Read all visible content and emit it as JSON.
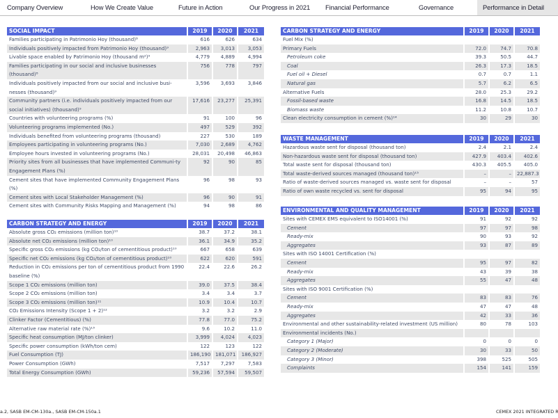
{
  "nav": {
    "tabs": [
      {
        "label": "Company Overview"
      },
      {
        "label": "How We Create Value"
      },
      {
        "label": "Future in Action"
      },
      {
        "label": "Our Progress in 2021"
      },
      {
        "label": "Financial Performance"
      },
      {
        "label": "Governance"
      },
      {
        "label": "Performance in Detail",
        "active": true
      }
    ]
  },
  "tables": {
    "social": {
      "title": "SOCIAL IMPACT",
      "years": [
        "2019",
        "2020",
        "2021"
      ],
      "rows": [
        {
          "label": "Families participating in Patrimonio Hoy (thousand)⁸",
          "values": [
            "616",
            "626",
            "634"
          ]
        },
        {
          "label": "Individuals positively impacted from Patrimonio Hoy (thousand)⁹",
          "values": [
            "2,963",
            "3,013",
            "3,053"
          ]
        },
        {
          "label": "Livable space enabled by Patrimonio Hoy (thousand m²)⁹",
          "values": [
            "4,779",
            "4,889",
            "4,994"
          ]
        },
        {
          "label": "Families participating in our social and inclusive businesses (thousand)⁸",
          "values": [
            "756",
            "778",
            "797"
          ]
        },
        {
          "label": "Individuals positively impacted from our social and inclusive busi-nesses (thousand)⁹",
          "values": [
            "3,596",
            "3,693",
            "3,846"
          ]
        },
        {
          "label": "Community partners (i.e. individuals positively impacted from our social initiatives) (thousand)⁹",
          "values": [
            "17,616",
            "23,277",
            "25,391"
          ]
        },
        {
          "label": "Countries with volunteering programs (%)",
          "values": [
            "91",
            "100",
            "96"
          ]
        },
        {
          "label": "Volunteering programs implemented (No.)",
          "values": [
            "497",
            "529",
            "392"
          ]
        },
        {
          "label": "Individuals benefited from volunteering programs (thousand)",
          "values": [
            "227",
            "530",
            "189"
          ]
        },
        {
          "label": "Employees participating in volunteering programs (No.)",
          "values": [
            "7,030",
            "2,689",
            "4,762"
          ]
        },
        {
          "label": "Employee hours invested in volunteering programs (No.)",
          "values": [
            "28,031",
            "20,498",
            "46,863"
          ]
        },
        {
          "label": "Priority sites from all businesses that have implemented Communi-ty Engagement Plans (%)",
          "values": [
            "92",
            "90",
            "85"
          ]
        },
        {
          "label": "Cement sites that have implemented Community Engagement Plans (%)",
          "values": [
            "96",
            "98",
            "93"
          ]
        },
        {
          "label": "Cement sites with Local Stakeholder Management (%)",
          "values": [
            "96",
            "90",
            "91"
          ]
        },
        {
          "label": "Cement sites with Community Risks Mapping and Management (%)",
          "values": [
            "94",
            "98",
            "86"
          ]
        }
      ]
    },
    "carbon_left": {
      "title": "CARBON STRATEGY AND ENERGY",
      "years": [
        "2019",
        "2020",
        "2021"
      ],
      "rows": [
        {
          "label": "Absolute gross CO₂ emissions (million ton)¹⁰",
          "values": [
            "38.7",
            "37.2",
            "38.1"
          ]
        },
        {
          "label": "Absolute net CO₂ emissions (million ton)¹⁰",
          "values": [
            "36.1",
            "34.9",
            "35.2"
          ]
        },
        {
          "label": "Specific gross CO₂ emissions (kg CO₂/ton of cementitious product)¹⁰",
          "values": [
            "667",
            "658",
            "639"
          ]
        },
        {
          "label": "Specific net CO₂ emissions (kg CO₂/ton of cementitious product)¹⁰",
          "values": [
            "622",
            "620",
            "591"
          ]
        },
        {
          "label": "Reduction in CO₂ emissions per ton of cementitious product from 1990 baseline (%)",
          "values": [
            "22.4",
            "22.6",
            "26.2"
          ]
        },
        {
          "label": "Scope 1 CO₂ emissions (million ton)",
          "values": [
            "39.0",
            "37.5",
            "38.4"
          ]
        },
        {
          "label": "Scope 2 CO₂ emissions (million ton)",
          "values": [
            "3.4",
            "3.4",
            "3.7"
          ]
        },
        {
          "label": "Scope 3 CO₂ emissions (million ton)¹¹",
          "values": [
            "10.9",
            "10.4",
            "10.7"
          ]
        },
        {
          "label": "CO₂ Emissions Intensity (Scope 1 + 2)¹²",
          "values": [
            "3.2",
            "3.2",
            "2.9"
          ]
        },
        {
          "label": "Clinker Factor (Cementitious) (%)",
          "values": [
            "77.8",
            "77.0",
            "75.2"
          ]
        },
        {
          "label": "Alternative raw material rate (%)¹³",
          "values": [
            "9.6",
            "10.2",
            "11.0"
          ]
        },
        {
          "label": "Specific heat consumption (MJ/ton clinker)",
          "values": [
            "3,999",
            "4,024",
            "4,023"
          ]
        },
        {
          "label": "Specific power consumption (kWh/ton cem)",
          "values": [
            "122",
            "123",
            "122"
          ]
        },
        {
          "label": "Fuel Consumption (TJ)",
          "values": [
            "186,190",
            "181,071",
            "186,927"
          ]
        },
        {
          "label": "Power Consumption (GWh)",
          "values": [
            "7,517",
            "7,297",
            "7,583"
          ]
        },
        {
          "label": "Total Energy Consumption (GWh)",
          "values": [
            "59,236",
            "57,594",
            "59,507"
          ]
        }
      ]
    },
    "carbon_right": {
      "title": "CARBON STRATEGY AND ENERGY",
      "years": [
        "2019",
        "2020",
        "2021"
      ],
      "rows": [
        {
          "label": "Fuel Mix (%)",
          "values": [
            "",
            "",
            ""
          ]
        },
        {
          "label": "Primary Fuels",
          "values": [
            "72.0",
            "74.7",
            "70.8"
          ]
        },
        {
          "label": "Petroleum coke",
          "values": [
            "39.3",
            "50.5",
            "44.7"
          ],
          "sub": true
        },
        {
          "label": "Coal",
          "values": [
            "26.3",
            "17.3",
            "18.5"
          ],
          "sub": true
        },
        {
          "label": "Fuel oil + Diesel",
          "values": [
            "0.7",
            "0.7",
            "1.1"
          ],
          "sub": true
        },
        {
          "label": "Natural gas",
          "values": [
            "5.7",
            "6.2",
            "6.5"
          ],
          "sub": true
        },
        {
          "label": "Alternative Fuels",
          "values": [
            "28.0",
            "25.3",
            "29.2"
          ]
        },
        {
          "label": "Fossil-based waste",
          "values": [
            "16.8",
            "14.5",
            "18.5"
          ],
          "sub": true
        },
        {
          "label": "Biomass waste",
          "values": [
            "11.2",
            "10.8",
            "10.7"
          ],
          "sub": true
        },
        {
          "label": "Clean electricity consumption in cement (%)¹⁴",
          "values": [
            "30",
            "29",
            "30"
          ]
        }
      ]
    },
    "waste": {
      "title": "WASTE MANAGEMENT",
      "years": [
        "2019",
        "2020",
        "2021"
      ],
      "rows": [
        {
          "label": "Hazardous waste sent for disposal (thousand ton)",
          "values": [
            "2.4",
            "2.1",
            "2.4"
          ]
        },
        {
          "label": "Non-hazardous waste sent for disposal (thousand ton)",
          "values": [
            "427.9",
            "403.4",
            "402.6"
          ]
        },
        {
          "label": "Total waste sent for disposal (thousand ton)",
          "values": [
            "430.3",
            "405.5",
            "405.0"
          ]
        },
        {
          "label": "Total waste-derived sources managed (thousand ton)¹⁵",
          "values": [
            "–",
            "–",
            "22,887.3"
          ]
        },
        {
          "label": "Ratio of waste-derived sources managed vs. waste sent for disposal",
          "values": [
            "–",
            "–",
            "57"
          ]
        },
        {
          "label": "Ratio of own waste recycled vs. sent for disposal",
          "values": [
            "95",
            "94",
            "95"
          ]
        }
      ]
    },
    "environmental": {
      "title": "ENVIRONMENTAL AND QUALITY MANAGEMENT",
      "years": [
        "2019",
        "2020",
        "2021"
      ],
      "rows": [
        {
          "label": "Sites with CEMEX EMS equivalent to ISO14001 (%)",
          "values": [
            "91",
            "92",
            "92"
          ]
        },
        {
          "label": "Cement",
          "values": [
            "97",
            "97",
            "98"
          ],
          "sub": true
        },
        {
          "label": "Ready-mix",
          "values": [
            "90",
            "93",
            "92"
          ],
          "sub": true
        },
        {
          "label": "Aggregates",
          "values": [
            "93",
            "87",
            "89"
          ],
          "sub": true
        },
        {
          "label": "Sites with ISO 14001 Certification (%)",
          "values": [
            "",
            "",
            ""
          ]
        },
        {
          "label": "Cement",
          "values": [
            "95",
            "97",
            "82"
          ],
          "sub": true
        },
        {
          "label": "Ready-mix",
          "values": [
            "43",
            "39",
            "38"
          ],
          "sub": true
        },
        {
          "label": "Aggregates",
          "values": [
            "55",
            "47",
            "48"
          ],
          "sub": true
        },
        {
          "label": "Sites with ISO 9001 Certification (%)",
          "values": [
            "",
            "",
            ""
          ]
        },
        {
          "label": "Cement",
          "values": [
            "83",
            "83",
            "76"
          ],
          "sub": true
        },
        {
          "label": "Ready-mix",
          "values": [
            "47",
            "47",
            "48"
          ],
          "sub": true
        },
        {
          "label": "Aggregates",
          "values": [
            "42",
            "33",
            "36"
          ],
          "sub": true
        },
        {
          "label": "Environmental and other sustainability-related investment (US million)",
          "values": [
            "80",
            "78",
            "103"
          ]
        },
        {
          "label": "Environmental incidents (No.)",
          "values": [
            "",
            "",
            ""
          ]
        },
        {
          "label": "Category 1 (Major)",
          "values": [
            "0",
            "0",
            "0"
          ],
          "sub": true
        },
        {
          "label": "Category 2 (Moderate)",
          "values": [
            "30",
            "33",
            "50"
          ],
          "sub": true
        },
        {
          "label": "Category 3 (Minor)",
          "values": [
            "398",
            "525",
            "505"
          ],
          "sub": true
        },
        {
          "label": "Complaints",
          "values": [
            "154",
            "141",
            "159"
          ],
          "sub": true
        }
      ]
    }
  },
  "footer": {
    "left": "a.2, SASB EM-CM-130a., SASB EM-CM-150a.1",
    "right": "CEMEX 2021 INTEGRATED R"
  },
  "colors": {
    "header_bg": "#5468dc",
    "row_alt": "#e7e7e7",
    "active_tab": "#e6e6e6"
  }
}
